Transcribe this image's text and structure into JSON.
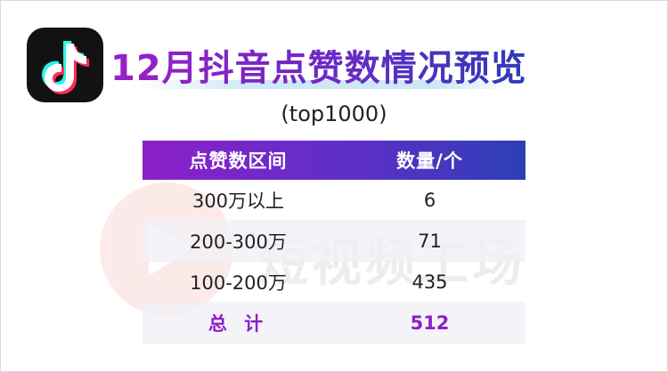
{
  "logo": {
    "icon": "tiktok-logo-icon"
  },
  "title": "12月抖音点赞数情况预览",
  "subtitle": "(top1000)",
  "watermark": {
    "text": "短视频工场",
    "icon": "play-circle-icon"
  },
  "colors": {
    "header_gradient": [
      "#8e1fc9",
      "#2d3fb6"
    ],
    "total_text": "#8e1fc9"
  },
  "chart_data": {
    "type": "table",
    "columns": [
      "点赞数区间",
      "数量/个"
    ],
    "rows": [
      {
        "range": "300万以上",
        "count": "6"
      },
      {
        "range": "200-300万",
        "count": "71"
      },
      {
        "range": "100-200万",
        "count": "435"
      }
    ],
    "total": {
      "label": "总 计",
      "count": "512"
    }
  }
}
